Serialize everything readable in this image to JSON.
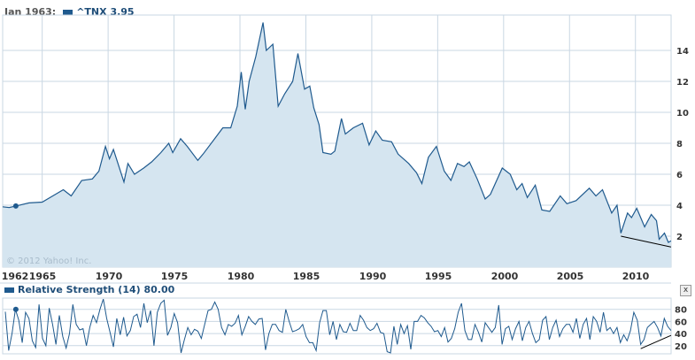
{
  "header": {
    "date_label": "Jan 1963:",
    "series_label": "^TNX 3.95"
  },
  "rsi_header": {
    "label": "Relative Strength (14) 80.00"
  },
  "close_button": "x",
  "copyright": "© 2012 Yahoo! Inc.",
  "colors": {
    "line": "#1f5a8e",
    "fill": "#d5e5f0",
    "grid": "#c9d7e3"
  },
  "chart_data": [
    {
      "type": "area",
      "series": [
        {
          "name": "^TNX",
          "values": [
            [
              1962,
              3.9
            ],
            [
              1962.5,
              3.85
            ],
            [
              1963,
              3.95
            ],
            [
              1964,
              4.15
            ],
            [
              1965,
              4.2
            ],
            [
              1965.8,
              4.6
            ],
            [
              1966.6,
              5.0
            ],
            [
              1967.2,
              4.6
            ],
            [
              1968,
              5.6
            ],
            [
              1968.8,
              5.7
            ],
            [
              1969.3,
              6.2
            ],
            [
              1969.8,
              7.8
            ],
            [
              1970.1,
              7.0
            ],
            [
              1970.4,
              7.6
            ],
            [
              1970.9,
              6.3
            ],
            [
              1971.2,
              5.5
            ],
            [
              1971.5,
              6.7
            ],
            [
              1972,
              6.0
            ],
            [
              1972.7,
              6.4
            ],
            [
              1973.3,
              6.8
            ],
            [
              1974,
              7.4
            ],
            [
              1974.6,
              8.0
            ],
            [
              1974.9,
              7.4
            ],
            [
              1975.5,
              8.3
            ],
            [
              1976,
              7.8
            ],
            [
              1976.8,
              6.9
            ],
            [
              1977.2,
              7.3
            ],
            [
              1978,
              8.2
            ],
            [
              1978.7,
              9.0
            ],
            [
              1979.3,
              9.0
            ],
            [
              1979.8,
              10.4
            ],
            [
              1980.1,
              12.6
            ],
            [
              1980.4,
              10.2
            ],
            [
              1980.7,
              12.0
            ],
            [
              1981.2,
              13.6
            ],
            [
              1981.75,
              15.8
            ],
            [
              1982.0,
              14.0
            ],
            [
              1982.5,
              14.4
            ],
            [
              1982.9,
              10.4
            ],
            [
              1983.4,
              11.2
            ],
            [
              1984.0,
              12.0
            ],
            [
              1984.4,
              13.8
            ],
            [
              1984.9,
              11.5
            ],
            [
              1985.3,
              11.7
            ],
            [
              1985.6,
              10.3
            ],
            [
              1986.0,
              9.2
            ],
            [
              1986.3,
              7.4
            ],
            [
              1986.9,
              7.3
            ],
            [
              1987.2,
              7.5
            ],
            [
              1987.7,
              9.6
            ],
            [
              1988.0,
              8.6
            ],
            [
              1988.6,
              9.0
            ],
            [
              1989.3,
              9.3
            ],
            [
              1989.8,
              7.9
            ],
            [
              1990.3,
              8.8
            ],
            [
              1990.8,
              8.2
            ],
            [
              1991.5,
              8.1
            ],
            [
              1992,
              7.3
            ],
            [
              1992.8,
              6.7
            ],
            [
              1993.4,
              6.1
            ],
            [
              1993.8,
              5.4
            ],
            [
              1994.3,
              7.1
            ],
            [
              1994.9,
              7.8
            ],
            [
              1995.5,
              6.2
            ],
            [
              1996,
              5.6
            ],
            [
              1996.5,
              6.7
            ],
            [
              1997,
              6.5
            ],
            [
              1997.4,
              6.8
            ],
            [
              1998,
              5.7
            ],
            [
              1998.6,
              4.4
            ],
            [
              1999,
              4.7
            ],
            [
              1999.9,
              6.4
            ],
            [
              2000.5,
              6.0
            ],
            [
              2001,
              5.0
            ],
            [
              2001.4,
              5.4
            ],
            [
              2001.8,
              4.5
            ],
            [
              2002.4,
              5.3
            ],
            [
              2002.9,
              3.7
            ],
            [
              2003.5,
              3.6
            ],
            [
              2004.3,
              4.6
            ],
            [
              2004.8,
              4.1
            ],
            [
              2005.5,
              4.3
            ],
            [
              2006.5,
              5.1
            ],
            [
              2007,
              4.6
            ],
            [
              2007.5,
              5.0
            ],
            [
              2008.2,
              3.5
            ],
            [
              2008.6,
              4.0
            ],
            [
              2008.9,
              2.2
            ],
            [
              2009.4,
              3.5
            ],
            [
              2009.7,
              3.2
            ],
            [
              2010.1,
              3.8
            ],
            [
              2010.7,
              2.6
            ],
            [
              2011.2,
              3.4
            ],
            [
              2011.6,
              3.0
            ],
            [
              2011.8,
              1.8
            ],
            [
              2012.2,
              2.2
            ],
            [
              2012.5,
              1.6
            ],
            [
              2012.7,
              1.7
            ]
          ]
        }
      ],
      "highlight": {
        "x": 1963,
        "y": 3.95
      },
      "trendline": [
        [
          2008.9,
          2.0
        ],
        [
          2012.7,
          1.3
        ]
      ],
      "xticks": [
        "1962",
        "1965",
        "1970",
        "1975",
        "1980",
        "1985",
        "1990",
        "1995",
        "2000",
        "2005",
        "2010"
      ],
      "yticks": [
        "2",
        "4",
        "6",
        "8",
        "10",
        "12",
        "14"
      ],
      "xlim": [
        1962,
        2012.7
      ],
      "ylim": [
        0,
        16.5
      ],
      "grid": true
    },
    {
      "type": "line",
      "series": [
        {
          "name": "Relative Strength (14)",
          "values": [
            76,
            12,
            40,
            80,
            62,
            25,
            75,
            65,
            28,
            17,
            88,
            32,
            20,
            82,
            55,
            22,
            70,
            35,
            16,
            40,
            88,
            55,
            46,
            48,
            20,
            50,
            70,
            58,
            80,
            97,
            65,
            42,
            18,
            65,
            38,
            67,
            36,
            45,
            68,
            72,
            50,
            90,
            58,
            78,
            20,
            75,
            90,
            95,
            37,
            50,
            73,
            58,
            8,
            30,
            50,
            38,
            47,
            44,
            32,
            55,
            78,
            80,
            92,
            80,
            50,
            38,
            55,
            52,
            57,
            70,
            38,
            52,
            68,
            60,
            55,
            64,
            65,
            13,
            40,
            55,
            55,
            45,
            42,
            80,
            60,
            43,
            45,
            48,
            55,
            35,
            25,
            25,
            12,
            58,
            78,
            78,
            38,
            60,
            30,
            55,
            43,
            42,
            57,
            45,
            45,
            70,
            62,
            50,
            45,
            48,
            57,
            42,
            40,
            10,
            8,
            52,
            22,
            55,
            40,
            53,
            14,
            60,
            60,
            70,
            66,
            58,
            52,
            43,
            45,
            35,
            50,
            26,
            32,
            48,
            75,
            90,
            45,
            30,
            30,
            55,
            42,
            26,
            58,
            50,
            42,
            50,
            87,
            22,
            48,
            52,
            30,
            48,
            60,
            28,
            50,
            60,
            40,
            25,
            30,
            62,
            68,
            30,
            50,
            62,
            35,
            48,
            55,
            55,
            42,
            65,
            32,
            55,
            65,
            30,
            68,
            60,
            42,
            75,
            45,
            50,
            40,
            50,
            25,
            38,
            28,
            45,
            75,
            62,
            22,
            30,
            50,
            55,
            60,
            50,
            36,
            65,
            52,
            45
          ]
        }
      ],
      "highlight": {
        "x": 1963,
        "y": 80
      },
      "trendline": [
        [
          2010.4,
          15
        ],
        [
          2012.7,
          37
        ]
      ],
      "yticks": [
        "20",
        "40",
        "60",
        "80"
      ],
      "ylim": [
        0,
        100
      ]
    }
  ]
}
